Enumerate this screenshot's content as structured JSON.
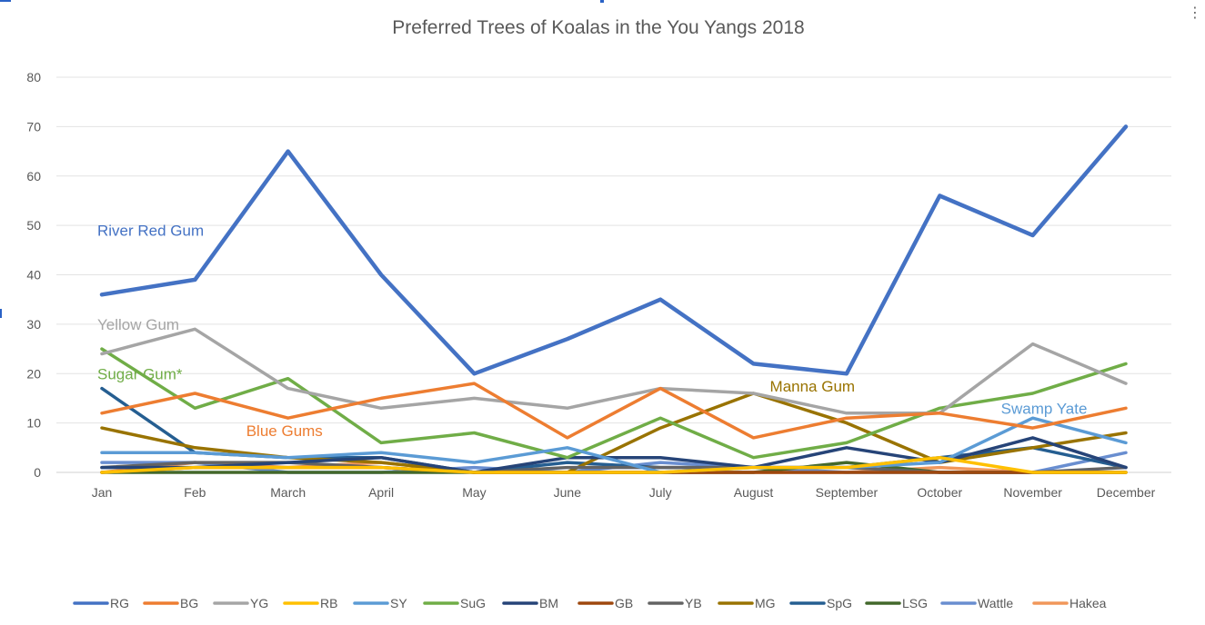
{
  "menu_icon": "more-vertical-icon",
  "chart_data": {
    "type": "line",
    "title": "Preferred Trees of Koalas in the You Yangs 2018",
    "xlabel": "",
    "ylabel": "",
    "ylim": [
      0,
      80
    ],
    "yticks": [
      0,
      10,
      20,
      30,
      40,
      50,
      60,
      70,
      80
    ],
    "grid": true,
    "legend_position": "bottom",
    "categories": [
      "Jan",
      "Feb",
      "March",
      "April",
      "May",
      "June",
      "July",
      "August",
      "September",
      "October",
      "November",
      "December"
    ],
    "series": [
      {
        "name": "RG",
        "color": "#4472C4",
        "values": [
          36,
          39,
          65,
          40,
          20,
          27,
          35,
          22,
          20,
          56,
          48,
          70
        ]
      },
      {
        "name": "BG",
        "color": "#ED7D31",
        "values": [
          12,
          16,
          11,
          15,
          18,
          7,
          17,
          7,
          11,
          12,
          9,
          13
        ]
      },
      {
        "name": "YG",
        "color": "#A5A5A5",
        "values": [
          24,
          29,
          17,
          13,
          15,
          13,
          17,
          16,
          12,
          12,
          26,
          18
        ]
      },
      {
        "name": "RB",
        "color": "#FFC000",
        "values": [
          0,
          1,
          1,
          1,
          0,
          0,
          0,
          1,
          1,
          3,
          0,
          0
        ]
      },
      {
        "name": "SY",
        "color": "#5B9BD5",
        "values": [
          4,
          4,
          3,
          4,
          2,
          5,
          0,
          1,
          1,
          2,
          11,
          6
        ]
      },
      {
        "name": "SuG",
        "color": "#70AD47",
        "values": [
          25,
          13,
          19,
          6,
          8,
          3,
          11,
          3,
          6,
          13,
          16,
          22
        ]
      },
      {
        "name": "BM",
        "color": "#264478",
        "values": [
          1,
          1,
          2,
          3,
          0,
          3,
          3,
          1,
          5,
          2,
          7,
          1
        ]
      },
      {
        "name": "GB",
        "color": "#9E480E",
        "values": [
          0,
          1,
          1,
          1,
          0,
          0,
          0,
          0,
          0,
          0,
          0,
          0
        ]
      },
      {
        "name": "YB",
        "color": "#636363",
        "values": [
          1,
          2,
          2,
          1,
          0,
          1,
          1,
          1,
          1,
          0,
          0,
          1
        ]
      },
      {
        "name": "MG",
        "color": "#997300",
        "values": [
          9,
          5,
          3,
          2,
          0,
          0,
          9,
          16,
          10,
          2,
          5,
          8
        ]
      },
      {
        "name": "SpG",
        "color": "#255E91",
        "values": [
          17,
          4,
          3,
          3,
          0,
          2,
          1,
          1,
          1,
          3,
          5,
          1
        ]
      },
      {
        "name": "LSG",
        "color": "#43682B",
        "values": [
          0,
          0,
          0,
          0,
          0,
          0,
          0,
          0,
          2,
          0,
          0,
          0
        ]
      },
      {
        "name": "Wattle",
        "color": "#698ED0",
        "values": [
          2,
          2,
          0,
          0,
          1,
          0,
          2,
          1,
          0,
          0,
          0,
          4
        ]
      },
      {
        "name": "Hakea",
        "color": "#F1975A",
        "values": [
          0,
          2,
          1,
          2,
          0,
          0,
          0,
          0,
          0,
          1,
          0,
          0
        ]
      }
    ],
    "annotations": [
      {
        "text": "River Red Gum",
        "series": "RG",
        "color": "#4472C4",
        "anchor_category": "Jan",
        "anchor_value": 49
      },
      {
        "text": "Yellow Gum",
        "series": "YG",
        "color": "#A5A5A5",
        "anchor_category": "Jan",
        "anchor_value": 30
      },
      {
        "text": "Sugar Gum*",
        "series": "SuG",
        "color": "#70AD47",
        "anchor_category": "Jan",
        "anchor_value": 20
      },
      {
        "text": "Blue Gums",
        "series": "BG",
        "color": "#ED7D31",
        "anchor_category": "March",
        "anchor_value": 8.5
      },
      {
        "text": "Manna Gum",
        "series": "MG",
        "color": "#997300",
        "anchor_category": "August",
        "anchor_value": 17.5
      },
      {
        "text": "Swamp Yate",
        "series": "SY",
        "color": "#5B9BD5",
        "anchor_category": "November",
        "anchor_value": 13
      }
    ]
  }
}
